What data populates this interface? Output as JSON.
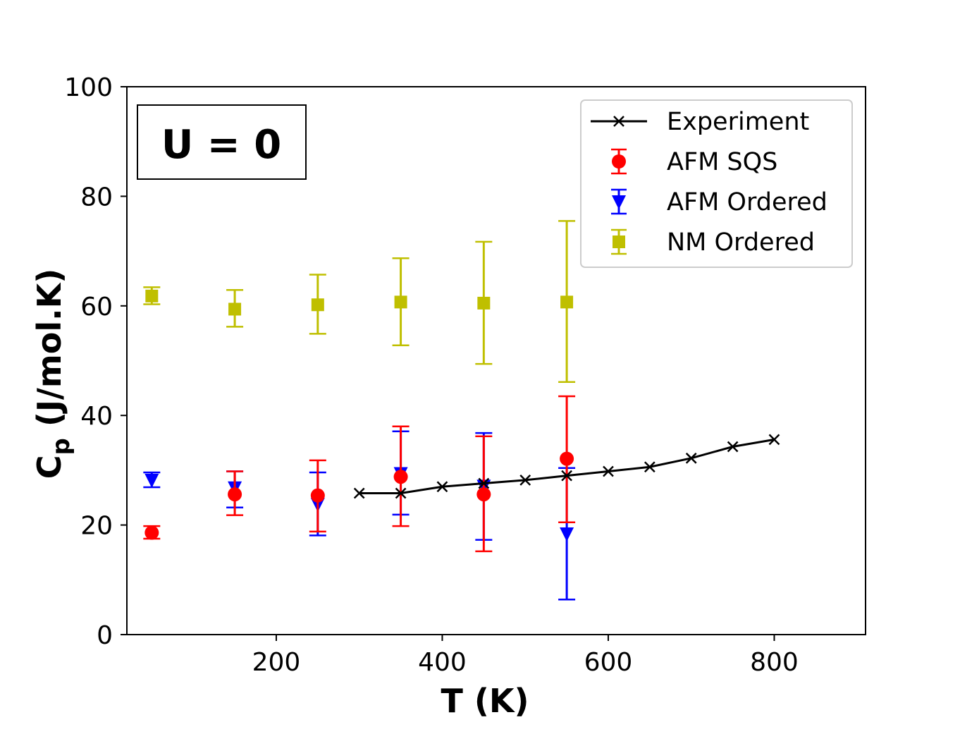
{
  "chart_data": {
    "type": "scatter",
    "xlabel": "T (K)",
    "ylabel_main": "C",
    "ylabel_sub": "p",
    "ylabel_rest": " (J/mol.K)",
    "xlim": [
      20,
      910
    ],
    "ylim": [
      0,
      100
    ],
    "xticks": [
      200,
      400,
      600,
      800
    ],
    "yticks": [
      0,
      20,
      40,
      60,
      80,
      100
    ],
    "annotation": "U = 0",
    "legend_position": "upper right",
    "series": [
      {
        "name": "Experiment",
        "style": "line-x",
        "color": "#000000",
        "x": [
          300,
          350,
          400,
          450,
          500,
          550,
          600,
          650,
          700,
          750,
          800
        ],
        "y": [
          25.8,
          25.8,
          27.0,
          27.6,
          28.2,
          29.0,
          29.8,
          30.6,
          32.2,
          34.3,
          35.6
        ]
      },
      {
        "name": "AFM SQS",
        "style": "errorbar-circle",
        "color": "#ff0000",
        "x": [
          50,
          150,
          250,
          350,
          450,
          550
        ],
        "y": [
          18.6,
          25.6,
          25.4,
          28.8,
          25.6,
          32.1
        ],
        "err_low": [
          17.5,
          21.8,
          18.8,
          19.8,
          15.2,
          20.5
        ],
        "err_high": [
          19.8,
          29.8,
          31.8,
          38.0,
          36.2,
          43.5
        ]
      },
      {
        "name": "AFM Ordered",
        "style": "errorbar-triangle-down",
        "color": "#0000ff",
        "x": [
          50,
          150,
          250,
          350,
          450,
          550
        ],
        "y": [
          28.2,
          26.8,
          23.8,
          29.4,
          27.1,
          18.4
        ],
        "err_low": [
          26.9,
          23.2,
          18.1,
          21.9,
          17.3,
          6.4
        ],
        "err_high": [
          29.6,
          29.8,
          29.6,
          37.1,
          36.8,
          30.4
        ]
      },
      {
        "name": "NM Ordered",
        "style": "errorbar-square",
        "color": "#bfbf00",
        "x": [
          50,
          150,
          250,
          350,
          450,
          550
        ],
        "y": [
          61.8,
          59.4,
          60.2,
          60.7,
          60.5,
          60.7
        ],
        "err_low": [
          60.3,
          56.2,
          54.9,
          52.8,
          49.4,
          46.1
        ],
        "err_high": [
          63.4,
          62.9,
          65.7,
          68.7,
          71.7,
          75.5
        ]
      }
    ]
  }
}
